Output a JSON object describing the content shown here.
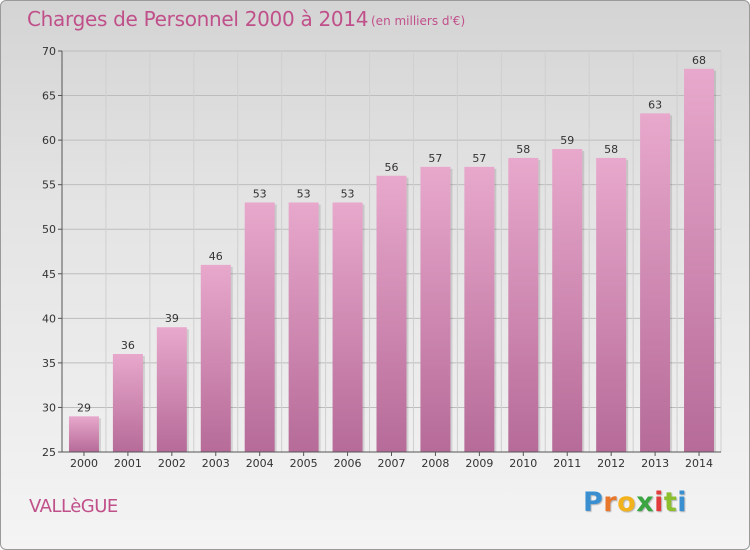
{
  "header": {
    "title": "Charges de Personnel 2000 à 2014",
    "subtitle": "(en milliers d'€)"
  },
  "footer": {
    "town": "VALLèGUE",
    "logo_letters": [
      "P",
      "r",
      "o",
      "x",
      "i",
      "t",
      "i"
    ],
    "logo_colors": [
      "#3a8fd0",
      "#e8762b",
      "#f2b21c",
      "#3aa541",
      "#e23b3b",
      "#8bbf2d",
      "#3a8fd0"
    ]
  },
  "chart_data": {
    "type": "bar",
    "categories": [
      "2000",
      "2001",
      "2002",
      "2003",
      "2004",
      "2005",
      "2006",
      "2007",
      "2008",
      "2009",
      "2010",
      "2011",
      "2012",
      "2013",
      "2014"
    ],
    "values": [
      29,
      36,
      39,
      46,
      53,
      53,
      53,
      56,
      57,
      57,
      58,
      59,
      58,
      63,
      68
    ],
    "ylim": [
      25,
      70
    ],
    "yticks": [
      25,
      30,
      35,
      40,
      45,
      50,
      55,
      60,
      65,
      70
    ],
    "bar_color": "#d98ab8",
    "grid": true
  }
}
